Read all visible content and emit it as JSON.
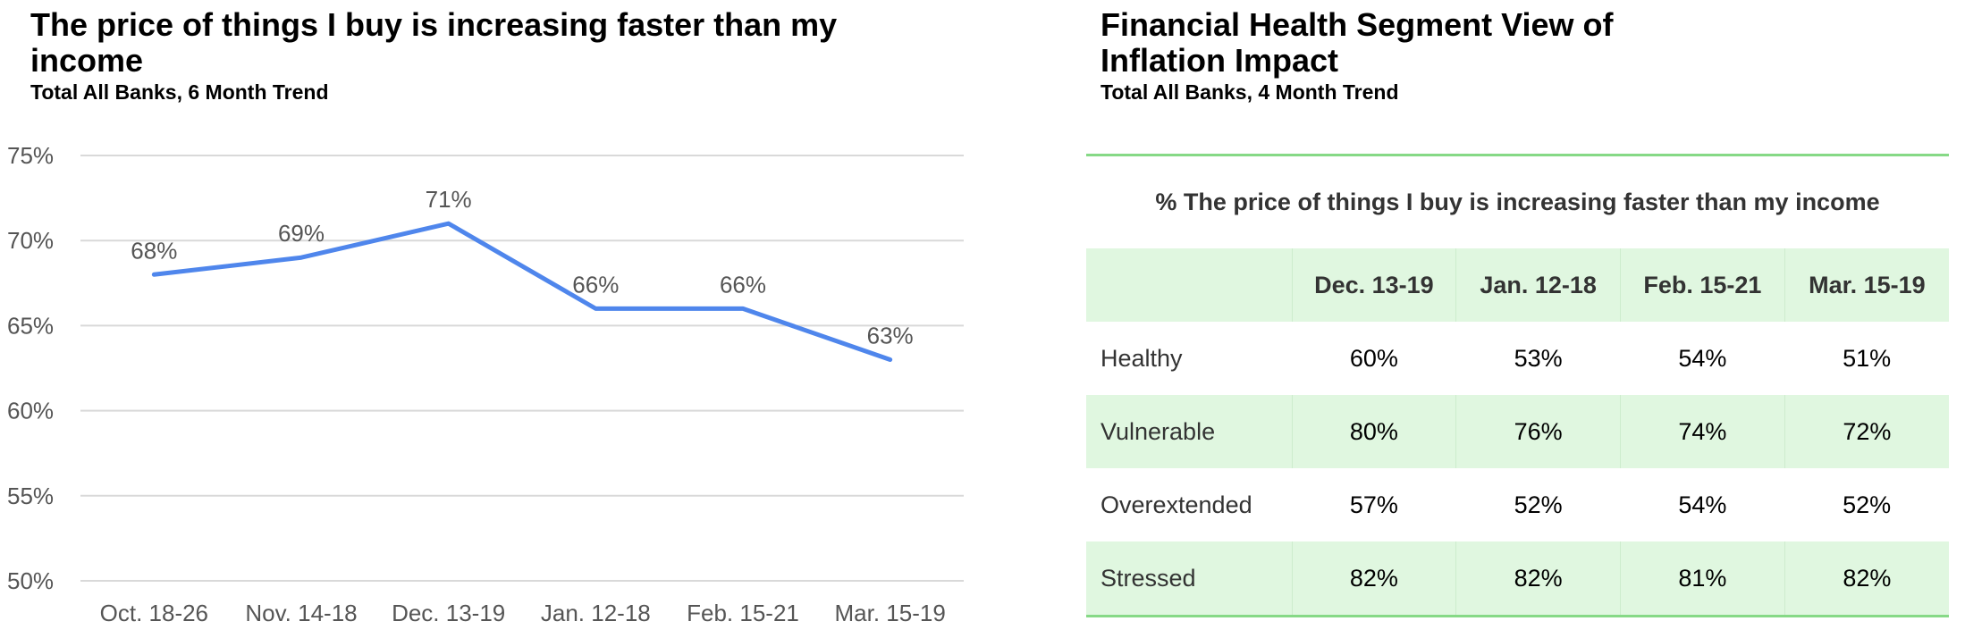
{
  "left": {
    "title": "The price of things I buy is increasing faster than my income",
    "subtitle": "Total All Banks, 6 Month Trend"
  },
  "right": {
    "title": "Financial Health Segment View of Inflation Impact",
    "subtitle": "Total All Banks, 4 Month Trend",
    "table_heading": "% The price of things I buy is increasing faster than my income",
    "columns": [
      "",
      "Dec. 13-19",
      "Jan. 12-18",
      "Feb. 15-21",
      "Mar. 15-19"
    ],
    "rows": [
      {
        "segment": "Healthy",
        "values": [
          "60%",
          "53%",
          "54%",
          "51%"
        ]
      },
      {
        "segment": "Vulnerable",
        "values": [
          "80%",
          "76%",
          "74%",
          "72%"
        ]
      },
      {
        "segment": "Overextended",
        "values": [
          "57%",
          "52%",
          "54%",
          "52%"
        ]
      },
      {
        "segment": "Stressed",
        "values": [
          "82%",
          "82%",
          "81%",
          "82%"
        ]
      }
    ]
  },
  "colors": {
    "line": "#4f86ec",
    "grid": "#d9d9d9",
    "table_rule": "#86d986",
    "table_shade": "#e0f7e0"
  },
  "chart_data": [
    {
      "type": "line",
      "title": "The price of things I buy is increasing faster than my income",
      "subtitle": "Total All Banks, 6 Month Trend",
      "categories": [
        "Oct. 18-26",
        "Nov. 14-18",
        "Dec. 13-19",
        "Jan. 12-18",
        "Feb. 15-21",
        "Mar. 15-19"
      ],
      "values": [
        68,
        69,
        71,
        66,
        66,
        63
      ],
      "data_labels": [
        "68%",
        "69%",
        "71%",
        "66%",
        "66%",
        "63%"
      ],
      "ylim": [
        50,
        75
      ],
      "yticks": [
        "50%",
        "55%",
        "60%",
        "65%",
        "70%",
        "75%"
      ],
      "ytick_values": [
        50,
        55,
        60,
        65,
        70,
        75
      ],
      "grid": true,
      "legend": "none"
    },
    {
      "type": "table",
      "title": "Financial Health Segment View of Inflation Impact",
      "subtitle": "Total All Banks, 4 Month Trend",
      "caption": "% The price of things I buy is increasing faster than my income",
      "columns": [
        "Dec. 13-19",
        "Jan. 12-18",
        "Feb. 15-21",
        "Mar. 15-19"
      ],
      "rows": [
        "Healthy",
        "Vulnerable",
        "Overextended",
        "Stressed"
      ],
      "values": [
        [
          60,
          53,
          54,
          51
        ],
        [
          80,
          76,
          74,
          72
        ],
        [
          57,
          52,
          54,
          52
        ],
        [
          82,
          82,
          81,
          82
        ]
      ]
    }
  ]
}
